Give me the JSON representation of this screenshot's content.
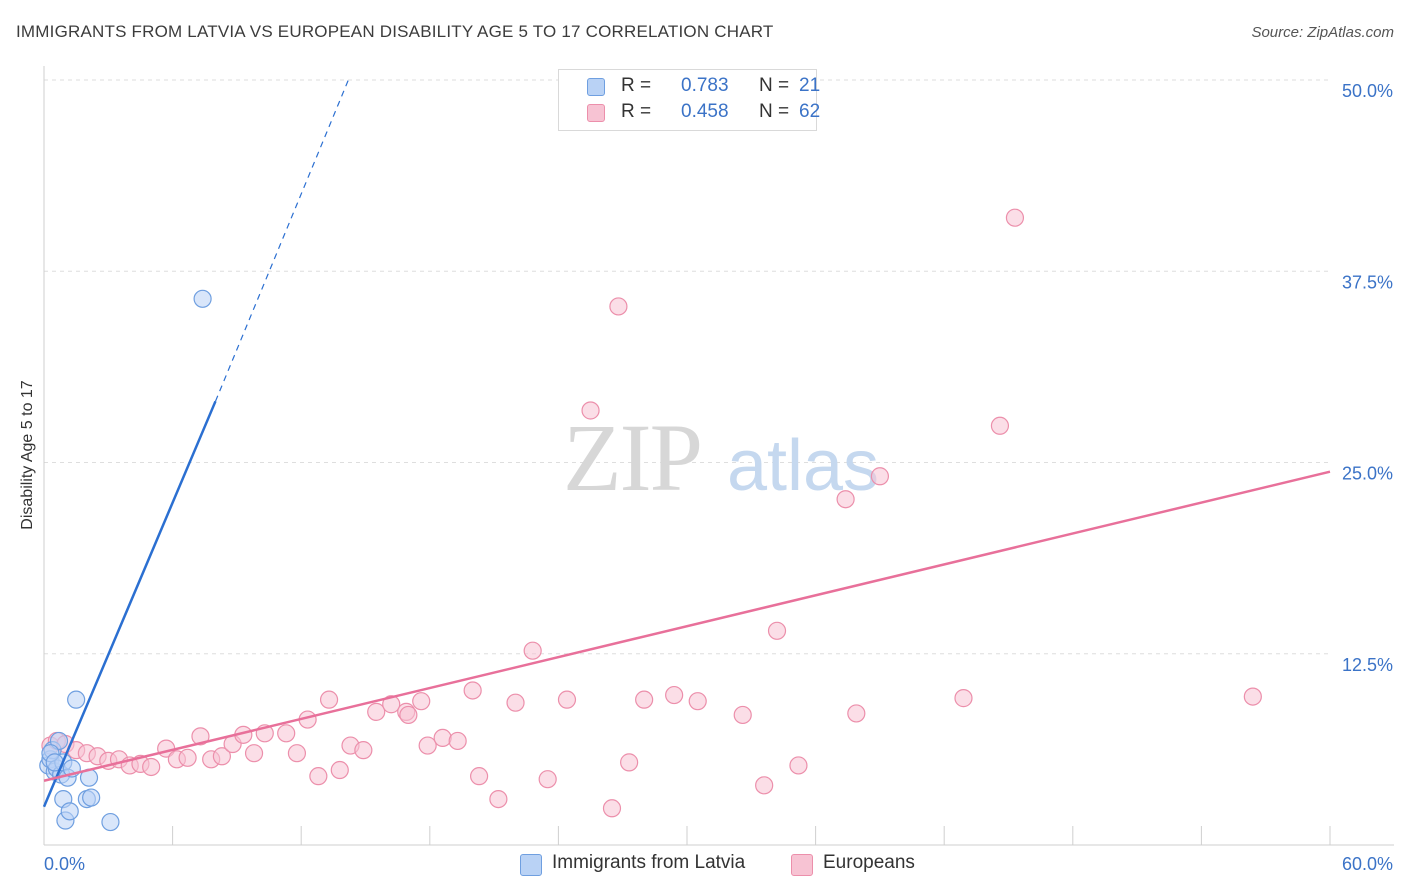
{
  "chart_data": {
    "type": "scatter",
    "title": "IMMIGRANTS FROM LATVIA VS EUROPEAN DISABILITY AGE 5 TO 17 CORRELATION CHART",
    "source": "Source: ZipAtlas.com",
    "ylabel": "Disability Age 5 to 17",
    "watermark": {
      "zip": "ZIP",
      "atlas": "atlas"
    },
    "xlim": [
      0,
      60
    ],
    "ylim": [
      0,
      52
    ],
    "x_tick_labels": [
      {
        "value": 0,
        "label": "0.0%"
      },
      {
        "value": 60,
        "label": "60.0%"
      }
    ],
    "x_minor_ticks": [
      6,
      12,
      18,
      24,
      30,
      36,
      42,
      48,
      54,
      60
    ],
    "y_ticks": [
      {
        "value": 12.5,
        "label": "12.5%"
      },
      {
        "value": 25,
        "label": "25.0%"
      },
      {
        "value": 37.5,
        "label": "37.5%"
      },
      {
        "value": 50,
        "label": "50.0%"
      }
    ],
    "legend_stats": [
      {
        "r_label": "R =",
        "r_value": "0.783",
        "n_label": "N =",
        "n_value": "21"
      },
      {
        "r_label": "R =",
        "r_value": "0.458",
        "n_label": "N =",
        "n_value": "62"
      }
    ],
    "series": [
      {
        "name": "Immigrants from Latvia",
        "fill": "#b9d2f5",
        "stroke": "#6f9fe0",
        "line_color": "#2b6fd1",
        "trend": {
          "x0": 0,
          "y0": 2.5,
          "x1": 8.0,
          "y1": 29.0,
          "dash_x1": 14.2,
          "dash_y1": 50.0
        },
        "points": [
          {
            "x": 0.2,
            "y": 5.2
          },
          {
            "x": 0.3,
            "y": 5.6
          },
          {
            "x": 0.4,
            "y": 6.2
          },
          {
            "x": 0.5,
            "y": 4.8
          },
          {
            "x": 0.6,
            "y": 5.0
          },
          {
            "x": 0.7,
            "y": 6.8
          },
          {
            "x": 0.8,
            "y": 4.6
          },
          {
            "x": 0.9,
            "y": 5.4
          },
          {
            "x": 0.9,
            "y": 3.0
          },
          {
            "x": 1.0,
            "y": 1.6
          },
          {
            "x": 1.1,
            "y": 4.4
          },
          {
            "x": 1.2,
            "y": 2.2
          },
          {
            "x": 1.3,
            "y": 5.0
          },
          {
            "x": 1.5,
            "y": 9.5
          },
          {
            "x": 2.0,
            "y": 3.0
          },
          {
            "x": 2.1,
            "y": 4.4
          },
          {
            "x": 2.2,
            "y": 3.1
          },
          {
            "x": 3.1,
            "y": 1.5
          },
          {
            "x": 7.4,
            "y": 35.7
          },
          {
            "x": 0.3,
            "y": 6.0
          },
          {
            "x": 0.5,
            "y": 5.4
          }
        ]
      },
      {
        "name": "Europeans",
        "fill": "#f7c3d3",
        "stroke": "#ec8fab",
        "line_color": "#e8709a",
        "trend": {
          "x0": 0,
          "y0": 4.2,
          "x1": 60,
          "y1": 24.4
        },
        "points": [
          {
            "x": 0.3,
            "y": 6.5
          },
          {
            "x": 0.6,
            "y": 6.8
          },
          {
            "x": 1.0,
            "y": 6.6
          },
          {
            "x": 1.5,
            "y": 6.2
          },
          {
            "x": 2.0,
            "y": 6.0
          },
          {
            "x": 2.5,
            "y": 5.8
          },
          {
            "x": 3.0,
            "y": 5.5
          },
          {
            "x": 3.5,
            "y": 5.6
          },
          {
            "x": 4.0,
            "y": 5.2
          },
          {
            "x": 4.5,
            "y": 5.3
          },
          {
            "x": 5.0,
            "y": 5.1
          },
          {
            "x": 5.7,
            "y": 6.3
          },
          {
            "x": 6.2,
            "y": 5.6
          },
          {
            "x": 6.7,
            "y": 5.7
          },
          {
            "x": 7.3,
            "y": 7.1
          },
          {
            "x": 7.8,
            "y": 5.6
          },
          {
            "x": 8.3,
            "y": 5.8
          },
          {
            "x": 8.8,
            "y": 6.6
          },
          {
            "x": 9.3,
            "y": 7.2
          },
          {
            "x": 9.8,
            "y": 6.0
          },
          {
            "x": 10.3,
            "y": 7.3
          },
          {
            "x": 11.3,
            "y": 7.3
          },
          {
            "x": 11.8,
            "y": 6.0
          },
          {
            "x": 12.3,
            "y": 8.2
          },
          {
            "x": 12.8,
            "y": 4.5
          },
          {
            "x": 13.3,
            "y": 9.5
          },
          {
            "x": 13.8,
            "y": 4.9
          },
          {
            "x": 14.3,
            "y": 6.5
          },
          {
            "x": 14.9,
            "y": 6.2
          },
          {
            "x": 15.5,
            "y": 8.7
          },
          {
            "x": 16.2,
            "y": 9.2
          },
          {
            "x": 16.9,
            "y": 8.7
          },
          {
            "x": 17.6,
            "y": 9.4
          },
          {
            "x": 17.0,
            "y": 8.5
          },
          {
            "x": 17.9,
            "y": 6.5
          },
          {
            "x": 18.6,
            "y": 7.0
          },
          {
            "x": 19.3,
            "y": 6.8
          },
          {
            "x": 20.0,
            "y": 10.1
          },
          {
            "x": 20.3,
            "y": 4.5
          },
          {
            "x": 21.2,
            "y": 3.0
          },
          {
            "x": 22.0,
            "y": 9.3
          },
          {
            "x": 22.8,
            "y": 12.7
          },
          {
            "x": 23.5,
            "y": 4.3
          },
          {
            "x": 24.4,
            "y": 9.5
          },
          {
            "x": 25.5,
            "y": 28.4
          },
          {
            "x": 26.8,
            "y": 35.2
          },
          {
            "x": 26.5,
            "y": 2.4
          },
          {
            "x": 27.3,
            "y": 5.4
          },
          {
            "x": 28.0,
            "y": 9.5
          },
          {
            "x": 29.4,
            "y": 9.8
          },
          {
            "x": 30.5,
            "y": 9.4
          },
          {
            "x": 32.6,
            "y": 8.5
          },
          {
            "x": 33.6,
            "y": 3.9
          },
          {
            "x": 34.2,
            "y": 14.0
          },
          {
            "x": 35.2,
            "y": 5.2
          },
          {
            "x": 37.4,
            "y": 22.6
          },
          {
            "x": 37.9,
            "y": 8.6
          },
          {
            "x": 39.0,
            "y": 24.1
          },
          {
            "x": 42.9,
            "y": 9.6
          },
          {
            "x": 44.6,
            "y": 27.4
          },
          {
            "x": 45.3,
            "y": 41.0
          },
          {
            "x": 56.4,
            "y": 9.7
          }
        ]
      }
    ]
  }
}
